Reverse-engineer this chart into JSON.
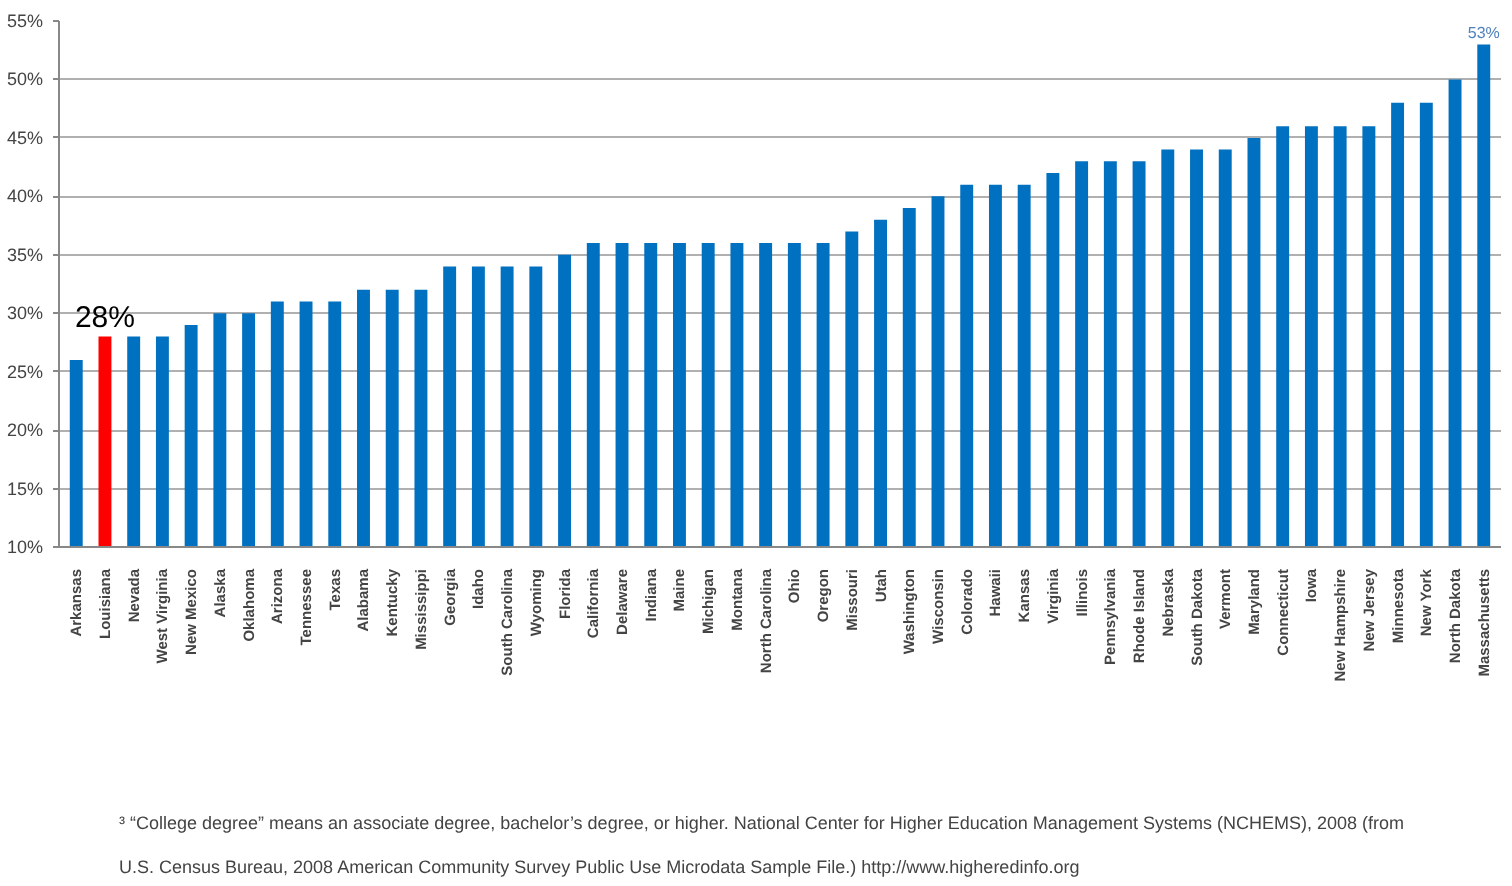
{
  "chart_data": {
    "type": "bar",
    "categories": [
      "Arkansas",
      "Louisiana",
      "Nevada",
      "West Virginia",
      "New Mexico",
      "Alaska",
      "Oklahoma",
      "Arizona",
      "Tennessee",
      "Texas",
      "Alabama",
      "Kentucky",
      "Mississippi",
      "Georgia",
      "Idaho",
      "South Carolina",
      "Wyoming",
      "Florida",
      "California",
      "Delaware",
      "Indiana",
      "Maine",
      "Michigan",
      "Montana",
      "North Carolina",
      "Ohio",
      "Oregon",
      "Missouri",
      "Utah",
      "Washington",
      "Wisconsin",
      "Colorado",
      "Hawaii",
      "Kansas",
      "Virginia",
      "Illinois",
      "Pennsylvania",
      "Rhode Island",
      "Nebraska",
      "South Dakota",
      "Vermont",
      "Maryland",
      "Connecticut",
      "Iowa",
      "New Hampshire",
      "New Jersey",
      "Minnesota",
      "New York",
      "North Dakota",
      "Massachusetts"
    ],
    "values": [
      26,
      28,
      28,
      28,
      29,
      30,
      30,
      31,
      31,
      31,
      32,
      32,
      32,
      34,
      34,
      34,
      34,
      35,
      36,
      36,
      36,
      36,
      36,
      36,
      36,
      36,
      36,
      37,
      38,
      39,
      40,
      41,
      41,
      41,
      42,
      43,
      43,
      43,
      44,
      44,
      44,
      45,
      46,
      46,
      46,
      46,
      48,
      48,
      50,
      53
    ],
    "colors": [
      "#0070c0",
      "#ff0000",
      "#0070c0",
      "#0070c0",
      "#0070c0",
      "#0070c0",
      "#0070c0",
      "#0070c0",
      "#0070c0",
      "#0070c0",
      "#0070c0",
      "#0070c0",
      "#0070c0",
      "#0070c0",
      "#0070c0",
      "#0070c0",
      "#0070c0",
      "#0070c0",
      "#0070c0",
      "#0070c0",
      "#0070c0",
      "#0070c0",
      "#0070c0",
      "#0070c0",
      "#0070c0",
      "#0070c0",
      "#0070c0",
      "#0070c0",
      "#0070c0",
      "#0070c0",
      "#0070c0",
      "#0070c0",
      "#0070c0",
      "#0070c0",
      "#0070c0",
      "#0070c0",
      "#0070c0",
      "#0070c0",
      "#0070c0",
      "#0070c0",
      "#0070c0",
      "#0070c0",
      "#0070c0",
      "#0070c0",
      "#0070c0",
      "#0070c0",
      "#0070c0",
      "#0070c0",
      "#0070c0",
      "#0070c0"
    ],
    "value_labels": [
      null,
      "28%",
      null,
      null,
      null,
      null,
      null,
      null,
      null,
      null,
      null,
      null,
      null,
      null,
      null,
      null,
      null,
      null,
      null,
      null,
      null,
      null,
      null,
      null,
      null,
      null,
      null,
      null,
      null,
      null,
      null,
      null,
      null,
      null,
      null,
      null,
      null,
      null,
      null,
      null,
      null,
      null,
      null,
      null,
      null,
      null,
      null,
      null,
      null,
      "53%"
    ],
    "ylim": [
      10,
      55
    ],
    "yticks": [
      {
        "value": 10,
        "label": "10%"
      },
      {
        "value": 15,
        "label": "15%"
      },
      {
        "value": 20,
        "label": "20%"
      },
      {
        "value": 25,
        "label": "25%"
      },
      {
        "value": 30,
        "label": "30%"
      },
      {
        "value": 35,
        "label": "35%"
      },
      {
        "value": 40,
        "label": "40%"
      },
      {
        "value": 45,
        "label": "45%"
      },
      {
        "value": 50,
        "label": "50%"
      },
      {
        "value": 55,
        "label": "55%"
      }
    ],
    "grid": "y",
    "annotations": [
      "³ “College degree” means an associate degree, bachelor’s degree, or higher. National Center for Higher Education Management Systems (NCHEMS), 2008 (from",
      "U.S. Census Bureau, 2008 American Community Survey Public Use Microdata Sample File.) http://www.higheredinfo.org"
    ]
  }
}
